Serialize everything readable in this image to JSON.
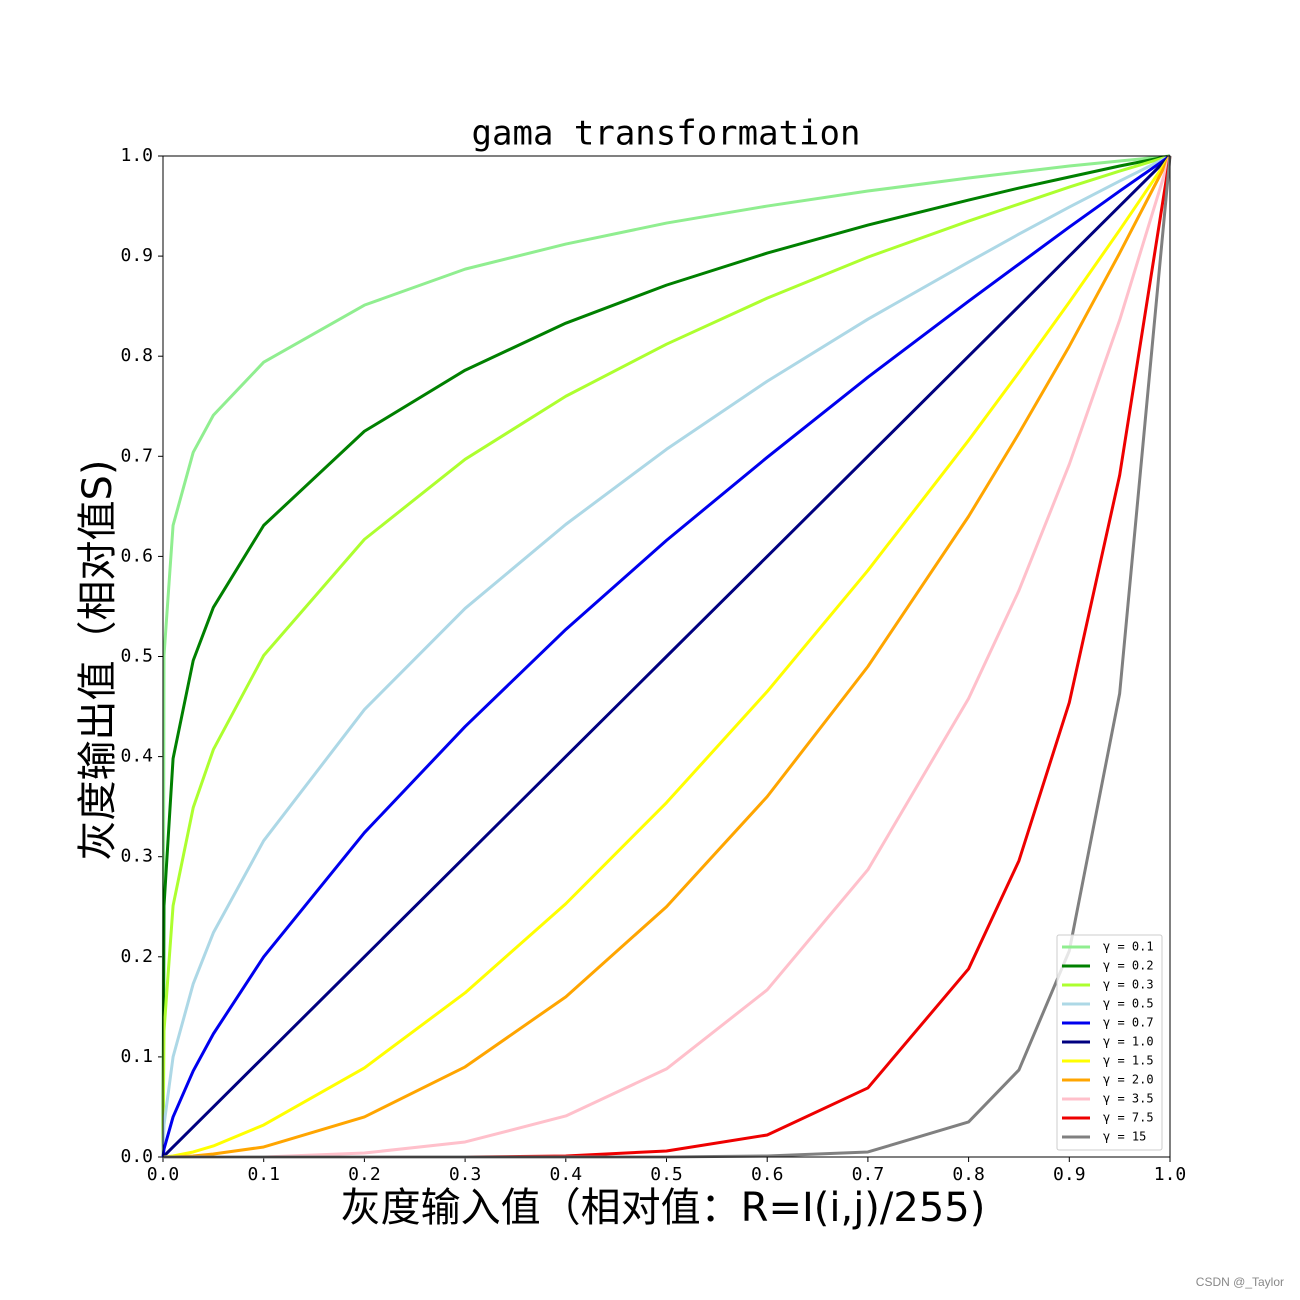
{
  "chart_data": {
    "type": "line",
    "title": "gama transformation",
    "x_label": "灰度输入值（相对值：R=I(i,j)/255)",
    "y_label": "灰度输出值（相对值S)",
    "watermark": "CSDN @_Taylor",
    "legend": "lower right",
    "x": [
      0,
      0.001,
      0.01,
      0.03,
      0.05,
      0.1,
      0.2,
      0.3,
      0.4,
      0.5,
      0.6,
      0.7,
      0.8,
      0.85,
      0.9,
      0.95,
      1.0
    ],
    "series": [
      {
        "name": "γ = 0.1",
        "color": "#90ee90",
        "values": [
          0,
          0.501,
          0.631,
          0.704,
          0.741,
          0.794,
          0.851,
          0.887,
          0.912,
          0.933,
          0.95,
          0.965,
          0.978,
          0.984,
          0.99,
          0.995,
          1
        ]
      },
      {
        "name": "γ = 0.2",
        "color": "#008000",
        "values": [
          0,
          0.251,
          0.398,
          0.496,
          0.549,
          0.631,
          0.725,
          0.786,
          0.833,
          0.871,
          0.903,
          0.931,
          0.956,
          0.968,
          0.979,
          0.99,
          1
        ]
      },
      {
        "name": "γ = 0.3",
        "color": "#adff2f",
        "values": [
          0,
          0.126,
          0.251,
          0.349,
          0.407,
          0.501,
          0.617,
          0.697,
          0.76,
          0.812,
          0.858,
          0.899,
          0.935,
          0.952,
          0.969,
          0.985,
          1
        ]
      },
      {
        "name": "γ = 0.5",
        "color": "#add8e6",
        "values": [
          0,
          0.032,
          0.1,
          0.173,
          0.224,
          0.316,
          0.447,
          0.548,
          0.632,
          0.707,
          0.775,
          0.837,
          0.894,
          0.922,
          0.949,
          0.975,
          1
        ]
      },
      {
        "name": "γ = 0.7",
        "color": "#0000ee",
        "values": [
          0,
          0.008,
          0.04,
          0.086,
          0.123,
          0.2,
          0.324,
          0.43,
          0.527,
          0.616,
          0.699,
          0.779,
          0.855,
          0.892,
          0.929,
          0.965,
          1
        ]
      },
      {
        "name": "γ = 1.0",
        "color": "#000080",
        "values": [
          0,
          0.001,
          0.01,
          0.03,
          0.05,
          0.1,
          0.2,
          0.3,
          0.4,
          0.5,
          0.6,
          0.7,
          0.8,
          0.85,
          0.9,
          0.95,
          1
        ]
      },
      {
        "name": "γ = 1.5",
        "color": "#ffff00",
        "values": [
          0,
          0,
          0.001,
          0.005,
          0.011,
          0.032,
          0.089,
          0.164,
          0.253,
          0.354,
          0.465,
          0.586,
          0.716,
          0.784,
          0.854,
          0.926,
          1
        ]
      },
      {
        "name": "γ = 2.0",
        "color": "#ffa500",
        "values": [
          0,
          0,
          0,
          0.001,
          0.003,
          0.01,
          0.04,
          0.09,
          0.16,
          0.25,
          0.36,
          0.49,
          0.64,
          0.723,
          0.81,
          0.903,
          1
        ]
      },
      {
        "name": "γ = 3.5",
        "color": "#ffc0cb",
        "values": [
          0,
          0,
          0,
          0,
          0,
          0,
          0.004,
          0.015,
          0.041,
          0.088,
          0.167,
          0.287,
          0.458,
          0.566,
          0.692,
          0.836,
          1
        ]
      },
      {
        "name": "γ = 7.5",
        "color": "#ee0000",
        "values": [
          0,
          0,
          0,
          0,
          0,
          0,
          0,
          0,
          0.001,
          0.006,
          0.022,
          0.069,
          0.188,
          0.296,
          0.454,
          0.681,
          1
        ]
      },
      {
        "name": "γ = 15",
        "color": "#808080",
        "values": [
          0,
          0,
          0,
          0,
          0,
          0,
          0,
          0,
          0,
          0,
          0.001,
          0.005,
          0.035,
          0.087,
          0.206,
          0.463,
          1
        ]
      }
    ],
    "xlim": [
      0,
      1
    ],
    "ylim": [
      0,
      1
    ],
    "xticks": [
      {
        "value": 0,
        "label": "0.0"
      },
      0.1,
      0.2,
      0.3,
      0.4,
      0.5,
      0.6,
      0.7,
      0.8,
      0.9,
      {
        "value": 1,
        "label": "1.0"
      }
    ],
    "yticks": [
      {
        "value": 0,
        "label": "0.0"
      },
      0.1,
      0.2,
      0.3,
      0.4,
      0.5,
      0.6,
      0.7,
      0.8,
      0.9,
      {
        "value": 1,
        "label": "1.0"
      }
    ],
    "grid": false
  }
}
